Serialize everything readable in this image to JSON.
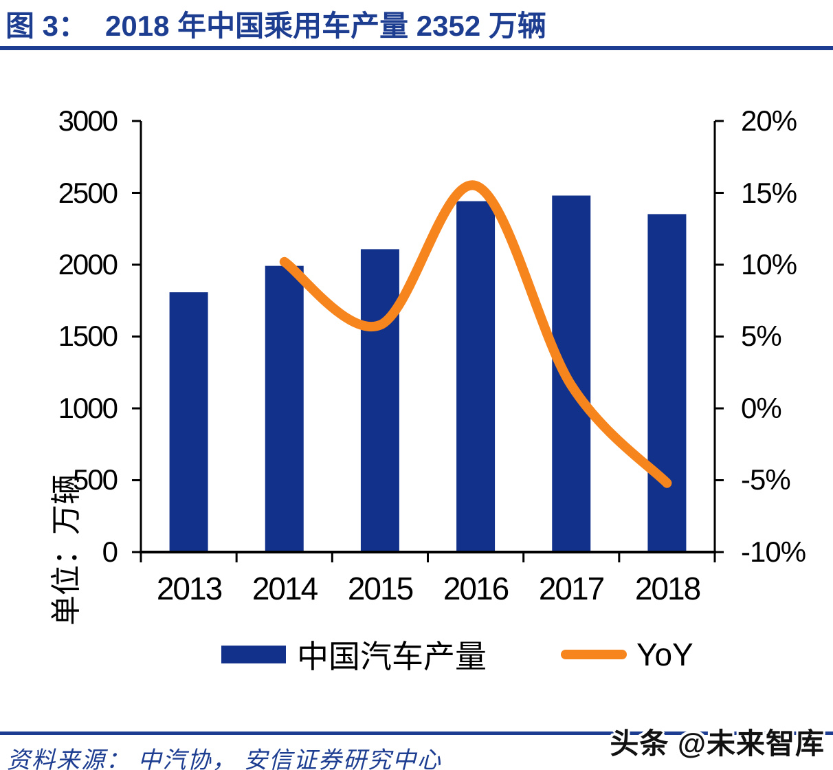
{
  "header": {
    "figure_label": "图 3：",
    "title": "2018 年中国乘用车产量 2352 万辆"
  },
  "chart_data": {
    "type": "bar",
    "subtype": "bar+line combo, dual axis",
    "title": "2018 年中国乘用车产量 2352 万辆",
    "categories": [
      "2013",
      "2014",
      "2015",
      "2016",
      "2017",
      "2018"
    ],
    "series": [
      {
        "name": "中国汽车产量",
        "type": "bar",
        "axis": "left",
        "color": "#12318a",
        "values": [
          1808,
          1992,
          2108,
          2442,
          2481,
          2352
        ]
      },
      {
        "name": "YoY",
        "type": "line",
        "axis": "right",
        "color": "#f7851e",
        "smooth": true,
        "values": [
          null,
          10.2,
          5.8,
          15.5,
          1.6,
          -5.2
        ]
      }
    ],
    "left_axis": {
      "min": 0,
      "max": 3000,
      "unit_label": "单位：万辆",
      "tick_labels": [
        "3000",
        "2500",
        "2000",
        "1500",
        "1000",
        "500",
        "0"
      ]
    },
    "right_axis": {
      "min": -10,
      "max": 20,
      "tick_labels": [
        "20%",
        "15%",
        "10%",
        "5%",
        "0%",
        "-5%",
        "-10%"
      ]
    },
    "grid": false,
    "legend_position": "bottom"
  },
  "legend": {
    "bar_label": "中国汽车产量",
    "line_label": "YoY"
  },
  "footer": {
    "source": "资料来源： 中汽协， 安信证券研究中心",
    "watermark": "头条 @未来智库"
  },
  "colors": {
    "bar": "#12318a",
    "line": "#f7851e",
    "brand_blue": "#1d3d91",
    "axis": "#000000"
  }
}
